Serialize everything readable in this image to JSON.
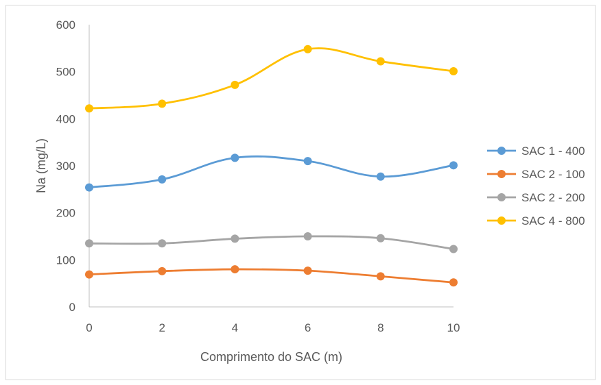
{
  "chart_data": {
    "type": "line",
    "smooth": true,
    "title": "",
    "xlabel": "Comprimento do SAC (m)",
    "ylabel": "Na (mg/L)",
    "x": [
      0,
      2,
      4,
      6,
      8,
      10
    ],
    "xlim": [
      0,
      10
    ],
    "ylim": [
      0,
      600
    ],
    "yticks": [
      0,
      100,
      200,
      300,
      400,
      500,
      600
    ],
    "grid": false,
    "legend_position": "right",
    "series": [
      {
        "name": "SAC 1 - 400",
        "color": "#5b9bd5",
        "values": [
          254,
          271,
          317,
          310,
          277,
          301
        ]
      },
      {
        "name": "SAC 2 - 100",
        "color": "#ed7d31",
        "values": [
          69,
          76,
          80,
          77,
          65,
          52
        ]
      },
      {
        "name": "SAC 2 - 200",
        "color": "#a5a5a5",
        "values": [
          135,
          135,
          145,
          150,
          146,
          123
        ]
      },
      {
        "name": "SAC 4 - 800",
        "color": "#ffc000",
        "values": [
          422,
          432,
          472,
          548,
          522,
          501
        ]
      }
    ]
  }
}
